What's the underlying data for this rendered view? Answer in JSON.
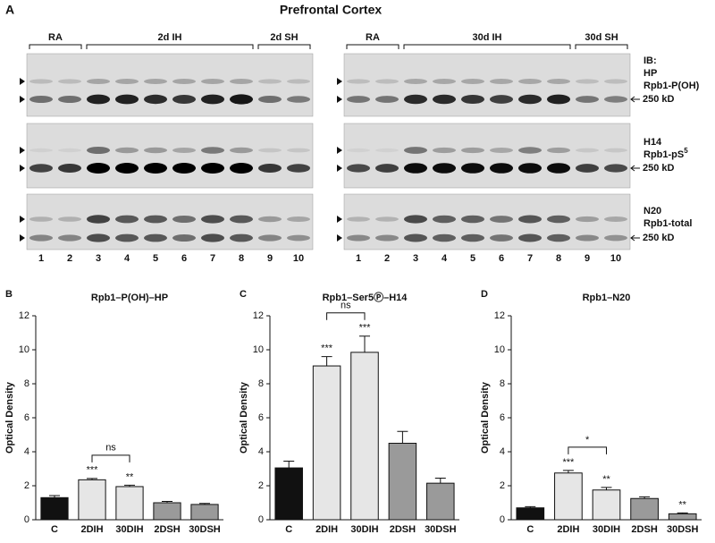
{
  "panel_a": {
    "letter": "A",
    "title": "Prefrontal Cortex",
    "groups_left": [
      "RA",
      "2d IH",
      "2d SH"
    ],
    "groups_right": [
      "RA",
      "30d IH",
      "30d SH"
    ],
    "ib": "IB:",
    "antibodies": [
      {
        "clone": "HP",
        "target": "Rpb1-P(OH)",
        "marker": "250 kD"
      },
      {
        "clone": "H14",
        "target": "Rpb1-pS",
        "target_sup": "5",
        "marker": "250 kD"
      },
      {
        "clone": "N20",
        "target": "Rpb1-total",
        "marker": "250 kD"
      }
    ],
    "lanes": [
      "1",
      "2",
      "3",
      "4",
      "5",
      "6",
      "7",
      "8",
      "9",
      "10"
    ]
  },
  "chart_data": [
    {
      "type": "bar",
      "letter": "B",
      "title": "Rpb1–P(OH)–HP",
      "y_label": "Optical Density",
      "categories": [
        "C",
        "2DIH",
        "30DIH",
        "2DSH",
        "30DSH"
      ],
      "values": [
        1.3,
        2.35,
        1.95,
        1.0,
        0.9
      ],
      "errors": [
        0.12,
        0.08,
        0.08,
        0.08,
        0.06
      ],
      "colors": [
        "#111111",
        "#e6e6e6",
        "#e6e6e6",
        "#9a9a9a",
        "#9a9a9a"
      ],
      "value_annotations": [
        null,
        "***",
        "**",
        null,
        null
      ],
      "bracket": {
        "label": "ns",
        "from": "2DIH",
        "to": "30DIH"
      },
      "ylim": [
        0,
        12
      ],
      "yticks": [
        0,
        2,
        4,
        6,
        8,
        10,
        12
      ]
    },
    {
      "type": "bar",
      "letter": "C",
      "title": "Rpb1–Ser5Ⓟ–H14",
      "y_label": "Optical Density",
      "categories": [
        "C",
        "2DIH",
        "30DIH",
        "2DSH",
        "30DSH"
      ],
      "values": [
        3.05,
        9.05,
        9.85,
        4.5,
        2.15
      ],
      "errors": [
        0.4,
        0.55,
        0.95,
        0.7,
        0.3
      ],
      "colors": [
        "#111111",
        "#e6e6e6",
        "#e6e6e6",
        "#9a9a9a",
        "#9a9a9a"
      ],
      "value_annotations": [
        null,
        "***",
        "***",
        null,
        null
      ],
      "bracket": {
        "label": "ns",
        "from": "2DIH",
        "to": "30DIH"
      },
      "ylim": [
        0,
        12
      ],
      "yticks": [
        0,
        2,
        4,
        6,
        8,
        10,
        12
      ]
    },
    {
      "type": "bar",
      "letter": "D",
      "title": "Rpb1–N20",
      "y_label": "Optical Density",
      "categories": [
        "C",
        "2DIH",
        "30DIH",
        "2DSH",
        "30DSH"
      ],
      "values": [
        0.7,
        2.75,
        1.75,
        1.25,
        0.35
      ],
      "errors": [
        0.07,
        0.15,
        0.15,
        0.1,
        0.05
      ],
      "colors": [
        "#111111",
        "#e6e6e6",
        "#e6e6e6",
        "#9a9a9a",
        "#9a9a9a"
      ],
      "value_annotations": [
        null,
        "***",
        "**",
        null,
        "**"
      ],
      "bracket": {
        "label": "*",
        "from": "2DIH",
        "to": "30DIH"
      },
      "ylim": [
        0,
        12
      ],
      "yticks": [
        0,
        2,
        4,
        6,
        8,
        10,
        12
      ]
    }
  ]
}
